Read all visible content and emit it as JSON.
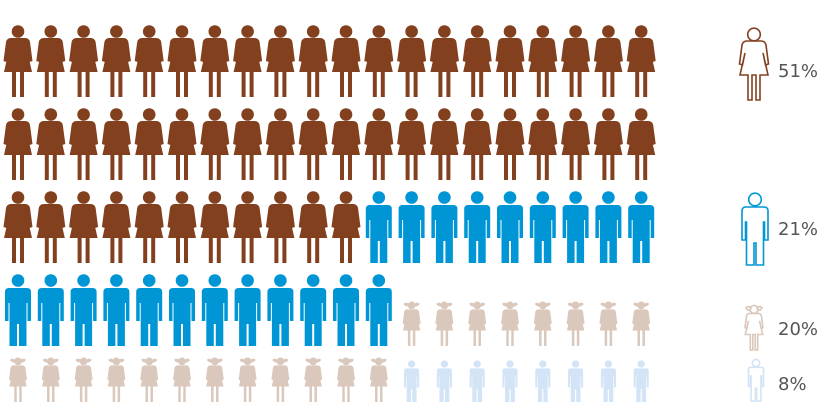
{
  "chart_data": {
    "type": "pictogram",
    "total_icons": 100,
    "columns": 20,
    "categories": [
      {
        "key": "women",
        "icon": "woman-icon",
        "value": 51,
        "label": "51%",
        "color": "#83401e"
      },
      {
        "key": "men",
        "icon": "man-icon",
        "value": 21,
        "label": "21%",
        "color": "#0096d6"
      },
      {
        "key": "girls",
        "icon": "girl-icon",
        "value": 20,
        "label": "20%",
        "color": "#d9c8bb"
      },
      {
        "key": "boys",
        "icon": "boy-icon",
        "value": 8,
        "label": "8%",
        "color": "#d3e4f7"
      }
    ],
    "legend_placement": "right"
  }
}
